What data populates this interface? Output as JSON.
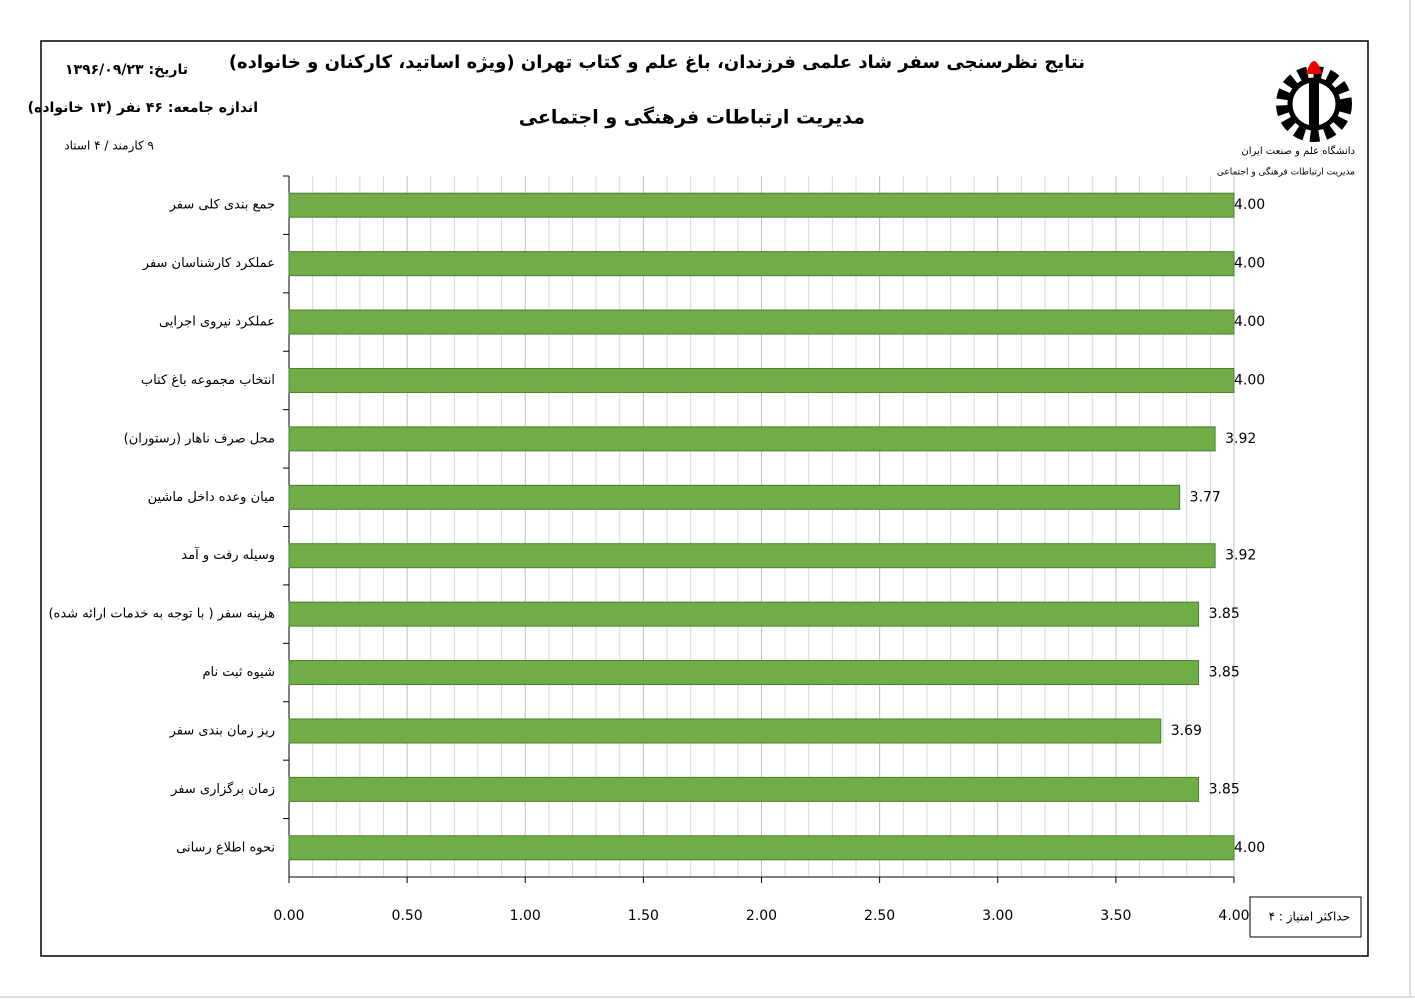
{
  "header": {
    "date": "تاریخ: ۱۳۹۶/۰۹/۲۳",
    "sample": "اندازه جامعه: ۴۶ نفر (۱۳ خانواده)",
    "composition": "۹ کارمند / ۴ استاد"
  },
  "logo": {
    "lines": [
      "دانشگاه علم و صنعت ایران",
      "مدیریت ارتباطات فرهنگی و اجتماعی"
    ]
  },
  "note": "حداکثر امتیاز : ۴",
  "chart_data": {
    "type": "bar",
    "orientation": "horizontal",
    "title": "نتایج نظرسنجی سفر شاد علمی فرزندان، باغ علم و کتاب تهران (ویژه اساتید، کارکنان و خانواده)",
    "subtitle": "مدیریت ارتباطات فرهنگی و اجتماعی",
    "categories": [
      "جمع بندی کلی سفر",
      "عملکرد کارشناسان سفر",
      "عملکرد نیروی اجرایی",
      "انتخاب مجموعه باغ کتاب",
      "محل صرف ناهار (رستوران)",
      "میان وعده داخل ماشین",
      "وسیله رفت و آمد",
      "هزینه سفر ( با توجه به خدمات ارائه شده)",
      "شیوه ثبت نام",
      "ریز زمان بندی سفر",
      "زمان برگزاری سفر",
      "نحوه اطلاع رسانی"
    ],
    "values": [
      4,
      4,
      4,
      4,
      3.92,
      3.77,
      3.92,
      3.85,
      3.85,
      3.69,
      3.85,
      4
    ],
    "value_labels": [
      "4.00",
      "4.00",
      "4.00",
      "4.00",
      "3.92",
      "3.77",
      "3.92",
      "3.85",
      "3.85",
      "3.69",
      "3.85",
      "4.00"
    ],
    "color": "#70ad47",
    "xlim": [
      0,
      4
    ],
    "xticks": [
      {
        "value": 0,
        "label": "0.00"
      },
      {
        "value": 0.5,
        "label": "0.50"
      },
      {
        "value": 1,
        "label": "1.00"
      },
      {
        "value": 1.5,
        "label": "1.50"
      },
      {
        "value": 2,
        "label": "2.00"
      },
      {
        "value": 2.5,
        "label": "2.50"
      },
      {
        "value": 3,
        "label": "3.00"
      },
      {
        "value": 3.5,
        "label": "3.50"
      },
      {
        "value": 4,
        "label": "4.00"
      }
    ],
    "minor_xticks": [
      0.1,
      0.2,
      0.3,
      0.4,
      0.6,
      0.7,
      0.8,
      0.9,
      1.1,
      1.2,
      1.3,
      1.4,
      1.6,
      1.7,
      1.8,
      1.9,
      2.1,
      2.2,
      2.3,
      2.4,
      2.6,
      2.7,
      2.8,
      2.9,
      3.1,
      3.2,
      3.3,
      3.4,
      3.6,
      3.7,
      3.8,
      3.9
    ],
    "grid": true
  }
}
